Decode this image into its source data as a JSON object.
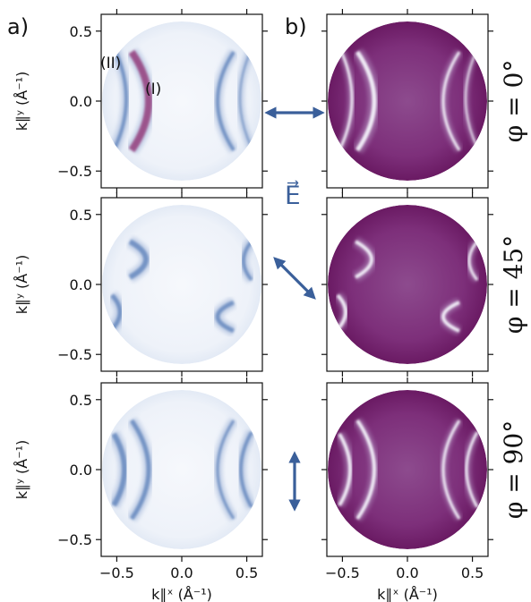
{
  "figure": {
    "panel_labels": {
      "a": "a)",
      "b": "b)"
    },
    "x_axis": {
      "label": "k∥ˣ (Å⁻¹)",
      "ticks": [
        "−0.5",
        "0.0",
        "0.5"
      ],
      "tick_values": [
        -0.5,
        0.0,
        0.5
      ],
      "range": [
        -0.62,
        0.62
      ]
    },
    "y_axis": {
      "label": "k∥ʸ (Å⁻¹)",
      "ticks": [
        "0.5",
        "0.0",
        "−0.5"
      ],
      "tick_values": [
        0.5,
        0.0,
        -0.5
      ],
      "range": [
        -0.62,
        0.62
      ]
    },
    "annotations": {
      "band_II": "(II)",
      "band_I": "(I)"
    },
    "field_label": "E⃗",
    "rows": [
      {
        "phi_label": "φ = 0°",
        "angle_deg": 0
      },
      {
        "phi_label": "φ = 45°",
        "angle_deg": 45
      },
      {
        "phi_label": "φ = 90°",
        "angle_deg": 90
      }
    ],
    "colors": {
      "left_colormap": [
        "#ffffff",
        "#5a7fb8",
        "#8c2a6e"
      ],
      "right_colormap": [
        "#6b1a66",
        "#8d3a88",
        "#ffffff"
      ],
      "arrow": "#3a5f9a"
    }
  }
}
